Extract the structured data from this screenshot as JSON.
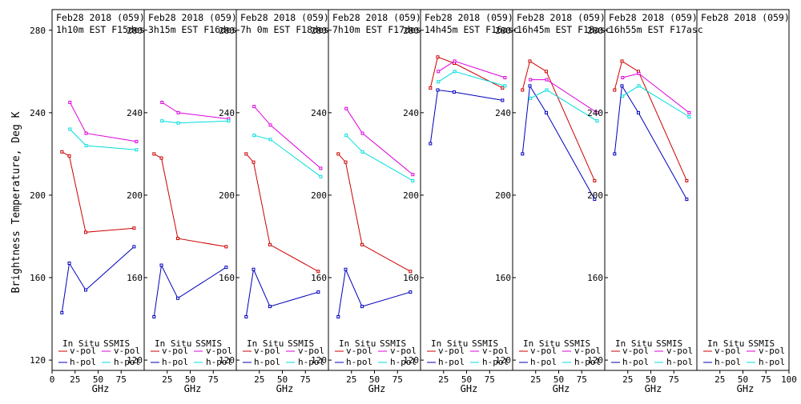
{
  "ylabel": "Brightness Temperature, Deg K",
  "xlabel": "GHz",
  "colors": {
    "insitu_v": "#cc0000",
    "insitu_h": "#0000bb",
    "ssmis_v": "#dd00dd",
    "ssmis_h": "#00dddd"
  },
  "legend": {
    "insitu_header": "In Situ",
    "ssmis_header": "SSMIS",
    "vpol": "v-pol",
    "hpol": "h-pol"
  },
  "chart_data": [
    {
      "type": "line",
      "title": "Feb28 2018 (059)",
      "subtitle": "1h10m EST F15des",
      "xlim": [
        0,
        100
      ],
      "ylim": [
        115,
        290
      ],
      "xticks": [
        0,
        25,
        50,
        75
      ],
      "yticks": [
        120,
        160,
        200,
        240,
        280
      ],
      "ytick_side": "left",
      "series": [
        {
          "name": "In Situ v-pol",
          "key": "insitu_v",
          "x": [
            10.7,
            18.7,
            36.5,
            89
          ],
          "y": [
            221,
            219,
            182,
            184
          ]
        },
        {
          "name": "In Situ h-pol",
          "key": "insitu_h",
          "x": [
            10.7,
            18.7,
            36.5,
            89
          ],
          "y": [
            143,
            167,
            154,
            175
          ]
        },
        {
          "name": "SSMIS v-pol",
          "key": "ssmis_v",
          "x": [
            19.35,
            37,
            91.65
          ],
          "y": [
            245,
            230,
            226
          ]
        },
        {
          "name": "SSMIS h-pol",
          "key": "ssmis_h",
          "x": [
            19.35,
            37,
            91.65
          ],
          "y": [
            232,
            224,
            222
          ]
        }
      ]
    },
    {
      "type": "line",
      "title": "Feb28 2018 (059)",
      "subtitle": "3h15m EST F16des",
      "xlim": [
        0,
        100
      ],
      "ylim": [
        115,
        290
      ],
      "xticks": [
        25,
        50,
        75
      ],
      "yticks": [
        120,
        160,
        200,
        240,
        280
      ],
      "ytick_side": "right",
      "series": [
        {
          "name": "In Situ v-pol",
          "key": "insitu_v",
          "x": [
            10.7,
            18.7,
            36.5,
            89
          ],
          "y": [
            220,
            218,
            179,
            175
          ]
        },
        {
          "name": "In Situ h-pol",
          "key": "insitu_h",
          "x": [
            10.7,
            18.7,
            36.5,
            89
          ],
          "y": [
            141,
            166,
            150,
            165
          ]
        },
        {
          "name": "SSMIS v-pol",
          "key": "ssmis_v",
          "x": [
            19.35,
            37,
            91.65
          ],
          "y": [
            245,
            240,
            237
          ]
        },
        {
          "name": "SSMIS h-pol",
          "key": "ssmis_h",
          "x": [
            19.35,
            37,
            91.65
          ],
          "y": [
            236,
            235,
            236
          ]
        }
      ]
    },
    {
      "type": "line",
      "title": "Feb28 2018 (059)",
      "subtitle": "7h 0m EST F18des",
      "xlim": [
        0,
        100
      ],
      "ylim": [
        115,
        290
      ],
      "xticks": [
        25,
        50,
        75
      ],
      "yticks": [
        120,
        160,
        200,
        240,
        280
      ],
      "ytick_side": "right",
      "series": [
        {
          "name": "In Situ v-pol",
          "key": "insitu_v",
          "x": [
            10.7,
            18.7,
            36.5,
            89
          ],
          "y": [
            220,
            216,
            176,
            163
          ]
        },
        {
          "name": "In Situ h-pol",
          "key": "insitu_h",
          "x": [
            10.7,
            18.7,
            36.5,
            89
          ],
          "y": [
            141,
            164,
            146,
            153
          ]
        },
        {
          "name": "SSMIS v-pol",
          "key": "ssmis_v",
          "x": [
            19.35,
            37,
            91.65
          ],
          "y": [
            243,
            234,
            213
          ]
        },
        {
          "name": "SSMIS h-pol",
          "key": "ssmis_h",
          "x": [
            19.35,
            37,
            91.65
          ],
          "y": [
            229,
            227,
            209
          ]
        }
      ]
    },
    {
      "type": "line",
      "title": "Feb28 2018 (059)",
      "subtitle": "7h10m EST F17des",
      "xlim": [
        0,
        100
      ],
      "ylim": [
        115,
        290
      ],
      "xticks": [
        25,
        50,
        75
      ],
      "yticks": [
        120,
        160,
        200,
        240,
        280
      ],
      "ytick_side": "right",
      "series": [
        {
          "name": "In Situ v-pol",
          "key": "insitu_v",
          "x": [
            10.7,
            18.7,
            36.5,
            89
          ],
          "y": [
            220,
            216,
            176,
            163
          ]
        },
        {
          "name": "In Situ h-pol",
          "key": "insitu_h",
          "x": [
            10.7,
            18.7,
            36.5,
            89
          ],
          "y": [
            141,
            164,
            146,
            153
          ]
        },
        {
          "name": "SSMIS v-pol",
          "key": "ssmis_v",
          "x": [
            19.35,
            37,
            91.65
          ],
          "y": [
            242,
            230,
            210
          ]
        },
        {
          "name": "SSMIS h-pol",
          "key": "ssmis_h",
          "x": [
            19.35,
            37,
            91.65
          ],
          "y": [
            229,
            221,
            207
          ]
        }
      ]
    },
    {
      "type": "line",
      "title": "Feb28 2018 (059)",
      "subtitle": "14h45m EST F16asc",
      "xlim": [
        0,
        100
      ],
      "ylim": [
        115,
        290
      ],
      "xticks": [
        25,
        50,
        75
      ],
      "yticks": [
        120,
        160,
        200,
        240,
        280
      ],
      "ytick_side": "right",
      "series": [
        {
          "name": "In Situ v-pol",
          "key": "insitu_v",
          "x": [
            10.7,
            18.7,
            36.5,
            89
          ],
          "y": [
            252,
            267,
            264,
            252
          ]
        },
        {
          "name": "In Situ h-pol",
          "key": "insitu_h",
          "x": [
            10.7,
            18.7,
            36.5,
            89
          ],
          "y": [
            225,
            251,
            250,
            246
          ]
        },
        {
          "name": "SSMIS v-pol",
          "key": "ssmis_v",
          "x": [
            19.35,
            37,
            91.65
          ],
          "y": [
            260,
            265,
            257
          ]
        },
        {
          "name": "SSMIS h-pol",
          "key": "ssmis_h",
          "x": [
            19.35,
            37,
            91.65
          ],
          "y": [
            255,
            260,
            253
          ]
        }
      ]
    },
    {
      "type": "line",
      "title": "Feb28 2018 (059)",
      "subtitle": "16h45m EST F18asc",
      "xlim": [
        0,
        100
      ],
      "ylim": [
        115,
        290
      ],
      "xticks": [
        25,
        50,
        75
      ],
      "yticks": [
        120,
        160,
        200,
        240,
        280
      ],
      "ytick_side": "right",
      "series": [
        {
          "name": "In Situ v-pol",
          "key": "insitu_v",
          "x": [
            10.7,
            18.7,
            36.5,
            89
          ],
          "y": [
            251,
            265,
            260,
            207
          ]
        },
        {
          "name": "In Situ h-pol",
          "key": "insitu_h",
          "x": [
            10.7,
            18.7,
            36.5,
            89
          ],
          "y": [
            220,
            253,
            240,
            198
          ]
        },
        {
          "name": "SSMIS v-pol",
          "key": "ssmis_v",
          "x": [
            19.35,
            37,
            91.65
          ],
          "y": [
            256,
            256,
            240
          ]
        },
        {
          "name": "SSMIS h-pol",
          "key": "ssmis_h",
          "x": [
            19.35,
            37,
            91.65
          ],
          "y": [
            247,
            251,
            236
          ]
        }
      ]
    },
    {
      "type": "line",
      "title": "Feb28 2018 (059)",
      "subtitle": "16h55m EST F17asc",
      "xlim": [
        0,
        100
      ],
      "ylim": [
        115,
        290
      ],
      "xticks": [
        25,
        50,
        75
      ],
      "yticks": [
        120,
        160,
        200,
        240,
        280
      ],
      "ytick_side": "right",
      "series": [
        {
          "name": "In Situ v-pol",
          "key": "insitu_v",
          "x": [
            10.7,
            18.7,
            36.5,
            89
          ],
          "y": [
            251,
            265,
            260,
            207
          ]
        },
        {
          "name": "In Situ h-pol",
          "key": "insitu_h",
          "x": [
            10.7,
            18.7,
            36.5,
            89
          ],
          "y": [
            220,
            253,
            240,
            198
          ]
        },
        {
          "name": "SSMIS v-pol",
          "key": "ssmis_v",
          "x": [
            19.35,
            37,
            91.65
          ],
          "y": [
            257,
            259,
            240
          ]
        },
        {
          "name": "SSMIS h-pol",
          "key": "ssmis_h",
          "x": [
            19.35,
            37,
            91.65
          ],
          "y": [
            248,
            253,
            238
          ]
        }
      ]
    },
    {
      "type": "line",
      "title": "Feb28 2018 (059)",
      "subtitle": "",
      "xlim": [
        0,
        100
      ],
      "ylim": [
        115,
        290
      ],
      "xticks": [
        25,
        50,
        75,
        100
      ],
      "yticks": [],
      "ytick_side": "none",
      "series": []
    }
  ]
}
